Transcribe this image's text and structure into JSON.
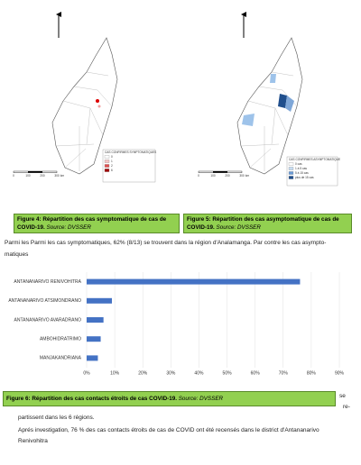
{
  "maps": [
    {
      "legend_title": "CAS CONFIRMES SYMPTOMATIQUES",
      "legend_items": [
        "0",
        "1",
        "2",
        "6"
      ],
      "scale_labels": [
        "0",
        "100",
        "200",
        "300",
        "km"
      ]
    },
    {
      "legend_title": "CAS CONFIRMES ASYMPTOMATIQUE",
      "legend_items": [
        "0 cas",
        "1 à 5 cas",
        "5 à 15 cas",
        "plus de 15 cas"
      ],
      "scale_labels": [
        "0",
        "100",
        "200",
        "300",
        "km"
      ]
    }
  ],
  "figures": [
    {
      "text": "Figure 4: Répartition des cas symptomatique de cas de COVID-19.",
      "source": "Source: DVSSER"
    },
    {
      "text": "Figure 5: Répartition des cas asymptomatique de cas de COVID-19.",
      "source": "Source: DVSSER"
    },
    {
      "text": "Figure 6: Répartition des cas contacts étroits de cas COVID-19.",
      "source": "Source: DVSSER"
    }
  ],
  "paragraph1": [
    "Parmi les Parmi les cas symptomatiques, 62% (8/13) se trouvent dans la région d'Analamanga. Par contre les cas asympto-",
    "matiques"
  ],
  "paragraph2": [
    "se",
    "re-",
    "partissent dans les 6 régions."
  ],
  "paragraph3": [
    "Aprés investigation, 76 % des cas contacts étroits de cas de COVID ont été recensés dans le district d'Antananarivo",
    "Renivohitra"
  ],
  "chart_data": {
    "type": "hbar",
    "categories": [
      "ANTANANARIVO RENIVOHITRA",
      "ANTANANARIVO ATSIMONDRANO",
      "ANTANANARIVO AVARADRANO",
      "AMBOHIDRATRIMO",
      "MANJAKANDRIANA"
    ],
    "values": [
      76,
      9,
      6,
      5,
      4
    ],
    "color": "#4472c4",
    "xlim": [
      0,
      90
    ],
    "xticks": [
      {
        "value": 0,
        "label": "0%"
      },
      {
        "value": 10,
        "label": "10%"
      },
      {
        "value": 20,
        "label": "20%"
      },
      {
        "value": 30,
        "label": "30%"
      },
      {
        "value": 40,
        "label": "40%"
      },
      {
        "value": 50,
        "label": "50%"
      },
      {
        "value": 60,
        "label": "60%"
      },
      {
        "value": 70,
        "label": "70%"
      },
      {
        "value": 80,
        "label": "80%"
      },
      {
        "value": 90,
        "label": "90%"
      }
    ],
    "grid": true
  }
}
